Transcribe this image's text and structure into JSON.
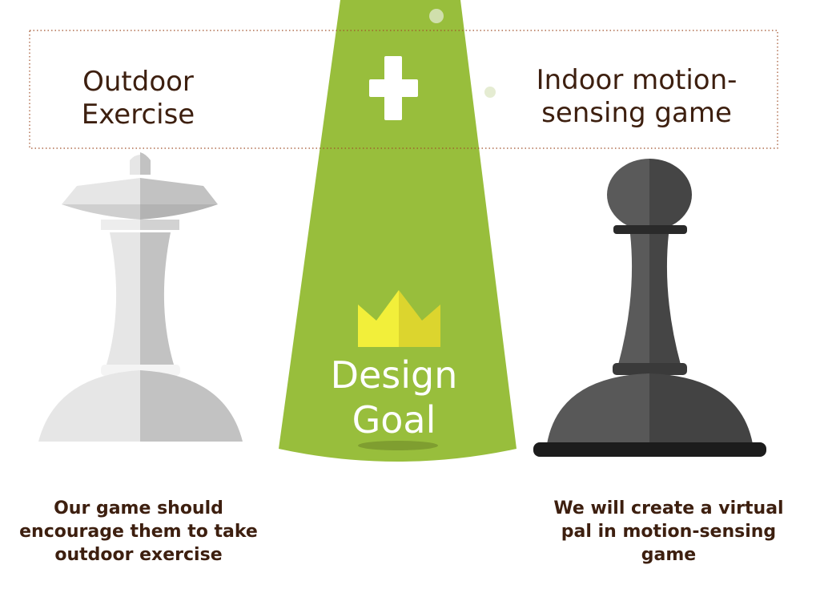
{
  "left": {
    "title_line1": "Outdoor",
    "title_line2": "Exercise",
    "caption_line1": "Our game should",
    "caption_line2": "encourage them to take",
    "caption_line3": "outdoor exercise"
  },
  "right": {
    "title_line1": "Indoor motion-",
    "title_line2": "sensing game",
    "caption_line1": "We will create a virtual",
    "caption_line2": "pal in motion-sensing",
    "caption_line3": "game"
  },
  "center": {
    "goal_line1": "Design",
    "goal_line2": "Goal"
  },
  "colors": {
    "spotlight_green": "#98be3c",
    "crown_yellow": "#f2ef3a",
    "text_brown": "#3d1f0f",
    "queen_light": "#e6e6e6",
    "queen_shade": "#c2c2c2",
    "pawn_light": "#5a5a5a",
    "pawn_dark": "#3e3e3e",
    "frame_red": "#a0502a"
  },
  "icons": [
    "plus-icon",
    "crown-icon",
    "queen-chess-piece",
    "pawn-chess-piece"
  ]
}
